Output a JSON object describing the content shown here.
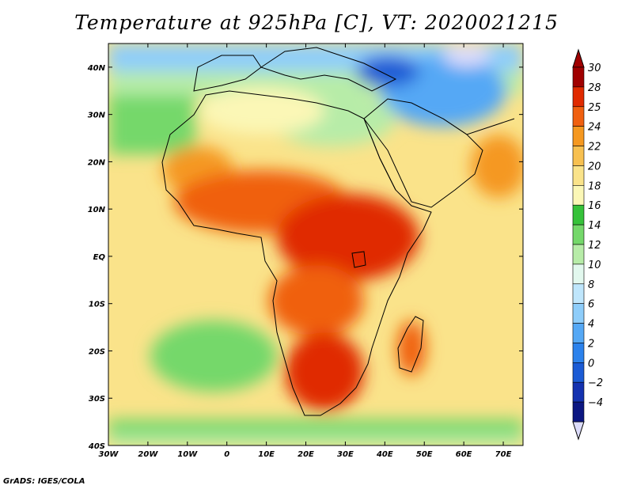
{
  "title": "Temperature at 925hPa [C], VT: 2020021215",
  "credit": "GrADS: IGES/COLA",
  "map": {
    "lon_range": [
      -30,
      75
    ],
    "lat_range": [
      -40,
      45
    ],
    "lon_ticks": [
      {
        "value": -30,
        "label": "30W"
      },
      {
        "value": -20,
        "label": "20W"
      },
      {
        "value": -10,
        "label": "10W"
      },
      {
        "value": 0,
        "label": "0"
      },
      {
        "value": 10,
        "label": "10E"
      },
      {
        "value": 20,
        "label": "20E"
      },
      {
        "value": 30,
        "label": "30E"
      },
      {
        "value": 40,
        "label": "40E"
      },
      {
        "value": 50,
        "label": "50E"
      },
      {
        "value": 60,
        "label": "60E"
      },
      {
        "value": 70,
        "label": "70E"
      }
    ],
    "lat_ticks": [
      {
        "value": 40,
        "label": "40N"
      },
      {
        "value": 30,
        "label": "30N"
      },
      {
        "value": 20,
        "label": "20N"
      },
      {
        "value": 10,
        "label": "10N"
      },
      {
        "value": 0,
        "label": "EQ"
      },
      {
        "value": -10,
        "label": "10S"
      },
      {
        "value": -20,
        "label": "20S"
      },
      {
        "value": -30,
        "label": "30S"
      },
      {
        "value": -40,
        "label": "40S"
      }
    ]
  },
  "colorbar": {
    "levels": [
      {
        "label": "30",
        "color": "#a00000"
      },
      {
        "label": "28",
        "color": "#e02a00"
      },
      {
        "label": "25",
        "color": "#f06010"
      },
      {
        "label": "24",
        "color": "#f59820"
      },
      {
        "label": "22",
        "color": "#f7c050"
      },
      {
        "label": "20",
        "color": "#fae38a"
      },
      {
        "label": "18",
        "color": "#fbf7b6"
      },
      {
        "label": "16",
        "color": "#36c23a"
      },
      {
        "label": "14",
        "color": "#74d86a"
      },
      {
        "label": "12",
        "color": "#b7eca8"
      },
      {
        "label": "10",
        "color": "#e2f8ee"
      },
      {
        "label": "8",
        "color": "#bfe6fc"
      },
      {
        "label": "6",
        "color": "#8ecdfa"
      },
      {
        "label": "4",
        "color": "#55a8f5"
      },
      {
        "label": "2",
        "color": "#2c82ec"
      },
      {
        "label": "0",
        "color": "#1b5bd5"
      },
      {
        "label": "−2",
        "color": "#1432b0"
      },
      {
        "label": "−4",
        "color": "#0c1782"
      }
    ],
    "over_color": "#a00000",
    "under_color": "#dcdcfa"
  },
  "land_outline_color": "#000000"
}
